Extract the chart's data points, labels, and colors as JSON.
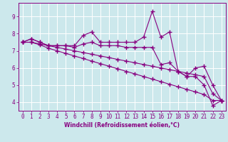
{
  "xlabel": "Windchill (Refroidissement éolien,°C)",
  "hours": [
    0,
    1,
    2,
    3,
    4,
    5,
    6,
    7,
    8,
    9,
    10,
    11,
    12,
    13,
    14,
    15,
    16,
    17,
    18,
    19,
    20,
    21,
    22,
    23
  ],
  "line1": [
    7.5,
    7.7,
    7.5,
    7.3,
    7.3,
    7.3,
    7.3,
    7.9,
    8.1,
    7.5,
    7.5,
    7.5,
    7.5,
    7.5,
    7.8,
    9.3,
    7.8,
    8.1,
    5.8,
    5.5,
    6.0,
    6.1,
    5.0,
    4.1
  ],
  "line2": [
    7.5,
    7.7,
    7.5,
    7.3,
    7.3,
    7.3,
    7.2,
    7.4,
    7.5,
    7.3,
    7.3,
    7.3,
    7.2,
    7.2,
    7.2,
    7.2,
    6.2,
    6.3,
    5.8,
    5.5,
    5.5,
    5.0,
    3.8,
    4.1
  ],
  "line3": [
    7.5,
    7.5,
    7.4,
    7.3,
    7.2,
    7.1,
    7.0,
    6.9,
    6.8,
    6.7,
    6.6,
    6.5,
    6.4,
    6.3,
    6.2,
    6.1,
    6.0,
    5.9,
    5.8,
    5.7,
    5.6,
    5.5,
    4.5,
    4.1
  ],
  "line4": [
    7.5,
    7.5,
    7.35,
    7.15,
    7.0,
    6.85,
    6.7,
    6.55,
    6.4,
    6.25,
    6.1,
    5.95,
    5.8,
    5.65,
    5.5,
    5.35,
    5.2,
    5.05,
    4.9,
    4.75,
    4.6,
    4.45,
    4.1,
    4.1
  ],
  "line_color": "#880080",
  "bg_color": "#cce8ec",
  "grid_color": "#b0d8dc",
  "ylim": [
    3.5,
    9.8
  ],
  "yticks": [
    4,
    5,
    6,
    7,
    8,
    9
  ],
  "xticks": [
    0,
    1,
    2,
    3,
    4,
    5,
    6,
    7,
    8,
    9,
    10,
    11,
    12,
    13,
    14,
    15,
    16,
    17,
    18,
    19,
    20,
    21,
    22,
    23
  ]
}
